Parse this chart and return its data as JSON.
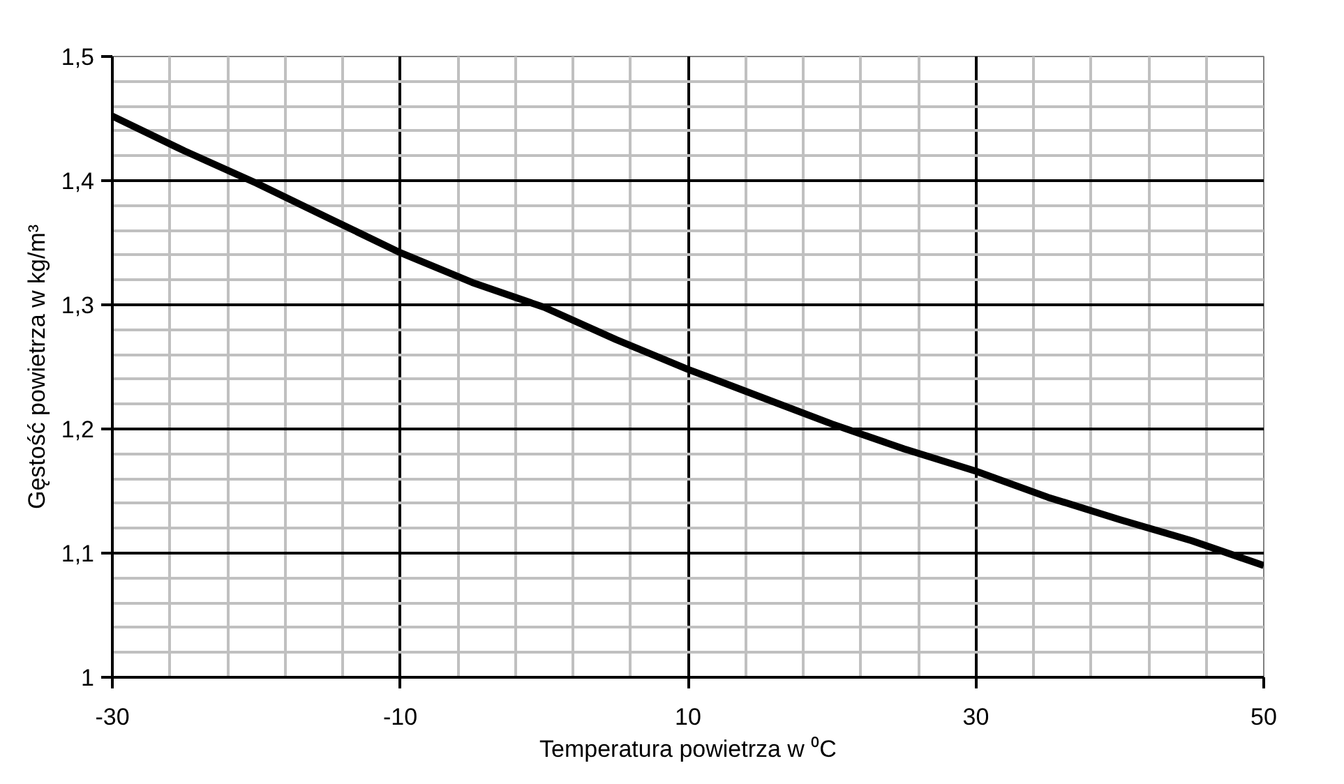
{
  "chart_data": {
    "type": "line",
    "xlabel": "Temperatura powietrza w ⁰C",
    "ylabel": "Gęstość powietrza w kg/m³",
    "x": [
      -30,
      -25,
      -20,
      -15,
      -10,
      -5,
      0,
      5,
      10,
      15,
      20,
      25,
      30,
      35,
      40,
      45,
      50
    ],
    "series": [
      {
        "color": "#000000",
        "values": [
          1.452,
          1.424,
          1.398,
          1.37,
          1.342,
          1.318,
          1.298,
          1.272,
          1.248,
          1.226,
          1.204,
          1.184,
          1.166,
          1.145,
          1.127,
          1.11,
          1.09
        ]
      }
    ],
    "xlim": [
      -30,
      50
    ],
    "ylim": [
      1,
      1.5
    ],
    "xticks": [
      -30,
      -10,
      10,
      30,
      50
    ],
    "yticks": [
      1,
      {
        "value": 1.1,
        "label": "1,1"
      },
      {
        "value": 1.2,
        "label": "1,2"
      },
      {
        "value": 1.3,
        "label": "1,3"
      },
      {
        "value": 1.4,
        "label": "1,4"
      },
      {
        "value": 1.5,
        "label": "1,5"
      }
    ],
    "grid": true,
    "marker": "none",
    "line_style": "solid"
  }
}
